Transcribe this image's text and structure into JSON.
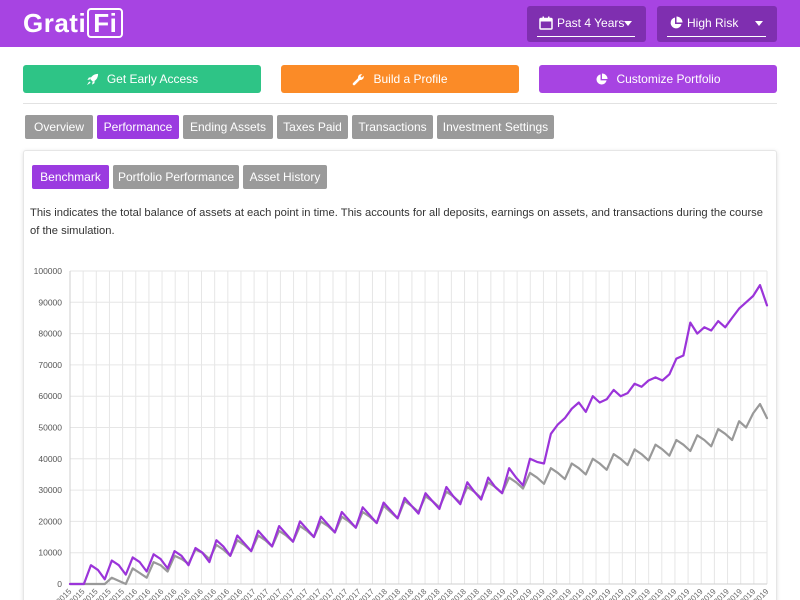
{
  "header": {
    "logo_text": "Grati",
    "logo_box_text": "Fi",
    "period_select": {
      "label": "Past 4 Years",
      "icon": "calendar-icon"
    },
    "risk_select": {
      "label": "High Risk",
      "icon": "pie-chart-icon"
    }
  },
  "actions": {
    "early_access": {
      "label": "Get Early Access",
      "icon": "rocket-icon",
      "color": "#2ec486"
    },
    "build_profile": {
      "label": "Build a Profile",
      "icon": "wrench-icon",
      "color": "#fb8b27"
    },
    "customize": {
      "label": "Customize Portfolio",
      "icon": "pie-chart-icon",
      "color": "#a744e2"
    }
  },
  "main_tabs": [
    {
      "label": "Overview",
      "active": false
    },
    {
      "label": "Performance",
      "active": true
    },
    {
      "label": "Ending Assets",
      "active": false
    },
    {
      "label": "Taxes Paid",
      "active": false
    },
    {
      "label": "Transactions",
      "active": false
    },
    {
      "label": "Investment Settings",
      "active": false
    }
  ],
  "sub_tabs": [
    {
      "label": "Benchmark",
      "active": true
    },
    {
      "label": "Portfolio Performance",
      "active": false
    },
    {
      "label": "Asset History",
      "active": false
    }
  ],
  "description": "This indicates the total balance of assets at each point in time. This accounts for all deposits, earnings on assets, and transactions during the course of the simulation.",
  "colors": {
    "purple": "#a744e2",
    "dark_purple": "#7f2fb0",
    "grey_tab": "#9a9a9a",
    "series_purple": "#9b34d9",
    "series_grey": "#999999"
  },
  "chart_data": {
    "type": "line",
    "ylim": [
      0,
      100000
    ],
    "yticks": [
      0,
      10000,
      20000,
      30000,
      40000,
      50000,
      60000,
      70000,
      80000,
      90000,
      100000
    ],
    "xtick_labels": [
      "2015",
      "2015",
      "2015",
      "2015",
      "2015",
      "2016",
      "2016",
      "2016",
      "2016",
      "2016",
      "2016",
      "2016",
      "2016",
      "2016",
      "2017",
      "2017",
      "2017",
      "2017",
      "2017",
      "2017",
      "2017",
      "2017",
      "2017",
      "2017",
      "2018",
      "2018",
      "2018",
      "2018",
      "2018",
      "2018",
      "2018",
      "2018",
      "2018",
      "2019",
      "2019",
      "2019",
      "2019",
      "2019",
      "2019",
      "2019",
      "2019",
      "2019",
      "2019",
      "2019",
      "2019",
      "2019",
      "2019",
      "2019",
      "2019",
      "2019",
      "2019",
      "2019",
      "2019",
      "2019"
    ],
    "grid": true,
    "series": [
      {
        "values": [
          0,
          0,
          0,
          6000,
          4500,
          1500,
          7500,
          6000,
          3000,
          8500,
          7000,
          4000,
          9500,
          8000,
          5000,
          10500,
          9000,
          6000,
          11500,
          10000,
          7000,
          14000,
          12000,
          9000,
          15500,
          13000,
          10500,
          17000,
          14500,
          12000,
          18500,
          16000,
          13500,
          20000,
          17500,
          15000,
          21500,
          19000,
          16500,
          23000,
          20500,
          18000,
          24500,
          22000,
          19500,
          26000,
          23500,
          21000,
          27500,
          25000,
          22500,
          29000,
          26500,
          24000,
          31000,
          28000,
          25500,
          32500,
          29500,
          27000,
          34000,
          31000,
          29000,
          37000,
          34000,
          31500,
          40000,
          39000,
          38500,
          48000,
          51000,
          53000,
          56000,
          58000,
          55000,
          60000,
          58000,
          59000,
          62000,
          60000,
          61000,
          64000,
          63000,
          65000,
          66000,
          65000,
          67000,
          72000,
          73000,
          83500,
          80000,
          82000,
          81000,
          84000,
          82000,
          85000,
          88000,
          90000,
          92000,
          95500,
          89000
        ],
        "color": "#9b34d9"
      },
      {
        "values": [
          0,
          0,
          0,
          0,
          0,
          0,
          2000,
          1000,
          0,
          5000,
          3500,
          2000,
          7000,
          6000,
          4000,
          9000,
          8000,
          6500,
          11000,
          10000,
          8000,
          12500,
          11000,
          9000,
          14000,
          12500,
          10500,
          15500,
          14000,
          12000,
          17000,
          15500,
          13500,
          18500,
          17000,
          15000,
          20000,
          18500,
          16500,
          21500,
          20000,
          18000,
          23000,
          21500,
          19500,
          25000,
          23000,
          21000,
          26500,
          25000,
          23000,
          28000,
          26500,
          24500,
          29500,
          28000,
          26000,
          31000,
          29500,
          27500,
          32500,
          31000,
          29000,
          34000,
          32500,
          30500,
          35500,
          34000,
          32000,
          37000,
          35500,
          33500,
          38500,
          37000,
          35000,
          40000,
          38500,
          36500,
          41500,
          40000,
          38000,
          43000,
          41500,
          39500,
          44500,
          43000,
          41000,
          46000,
          44500,
          42500,
          47500,
          46000,
          44000,
          49500,
          48000,
          46000,
          52000,
          50000,
          54500,
          57500,
          53000
        ],
        "color": "#999999"
      }
    ]
  }
}
